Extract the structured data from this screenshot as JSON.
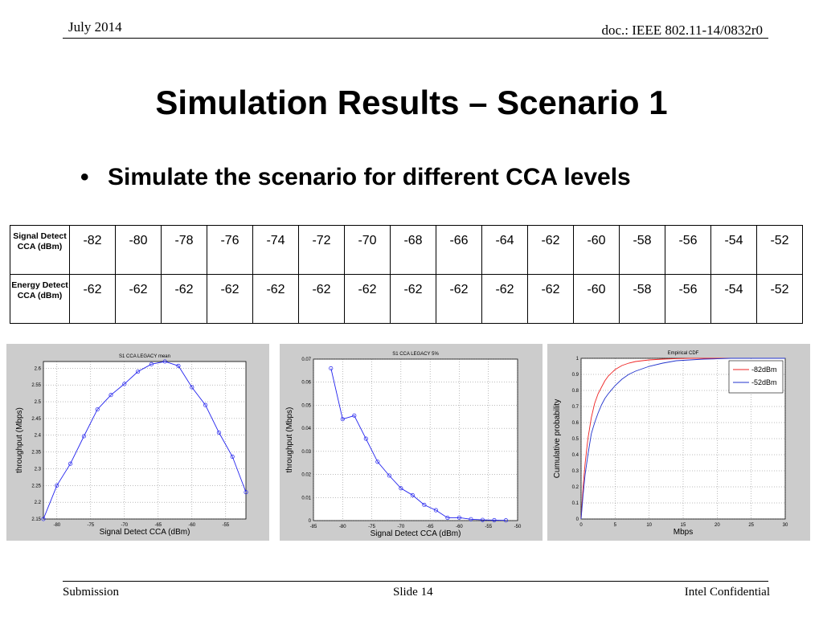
{
  "header": {
    "date": "July 2014",
    "doc": "doc.: IEEE 802.11-14/0832r0"
  },
  "title": "Simulation Results – Scenario 1",
  "bullet": {
    "marker": "•",
    "text": "Simulate the scenario for different CCA levels"
  },
  "table": {
    "rows": [
      {
        "header": "Signal Detect CCA (dBm)",
        "values": [
          "-82",
          "-80",
          "-78",
          "-76",
          "-74",
          "-72",
          "-70",
          "-68",
          "-66",
          "-64",
          "-62",
          "-60",
          "-58",
          "-56",
          "-54",
          "-52"
        ]
      },
      {
        "header": "Energy Detect CCA (dBm)",
        "values": [
          "-62",
          "-62",
          "-62",
          "-62",
          "-62",
          "-62",
          "-62",
          "-62",
          "-62",
          "-62",
          "-62",
          "-60",
          "-58",
          "-56",
          "-54",
          "-52"
        ]
      }
    ]
  },
  "chart_data": [
    {
      "type": "line",
      "title": "S1 CCA LEGACY mean",
      "xlabel": "Signal Detect CCA (dBm)",
      "ylabel": "throughput (Mbps)",
      "xlim": [
        -82,
        -52
      ],
      "ylim": [
        2.15,
        2.62
      ],
      "xticks": [
        -80,
        -75,
        -70,
        -65,
        -60,
        -55
      ],
      "yticks": [
        2.15,
        2.2,
        2.25,
        2.3,
        2.35,
        2.4,
        2.45,
        2.5,
        2.55,
        2.6
      ],
      "grid": true,
      "series": [
        {
          "x": [
            -82,
            -80,
            -78,
            -76,
            -74,
            -72,
            -70,
            -68,
            -66,
            -64,
            -62,
            -60,
            -58,
            -56,
            -54,
            -52
          ],
          "y": [
            2.15,
            2.25,
            2.315,
            2.397,
            2.477,
            2.52,
            2.553,
            2.59,
            2.612,
            2.62,
            2.607,
            2.543,
            2.49,
            2.408,
            2.336,
            2.23
          ],
          "color": "#2222ee",
          "marker": "circle"
        }
      ]
    },
    {
      "type": "line",
      "title": "S1 CCA LEGACY 5%",
      "xlabel": "Signal Detect CCA (dBm)",
      "ylabel": "throughput (Mbps)",
      "xlim": [
        -85,
        -50
      ],
      "ylim": [
        0,
        0.07
      ],
      "xticks": [
        -85,
        -80,
        -75,
        -70,
        -65,
        -60,
        -55,
        -50
      ],
      "yticks": [
        0,
        0.01,
        0.02,
        0.03,
        0.04,
        0.05,
        0.06,
        0.07
      ],
      "grid": true,
      "series": [
        {
          "x": [
            -82,
            -80,
            -78,
            -76,
            -74,
            -72,
            -70,
            -68,
            -66,
            -64,
            -62,
            -60,
            -58,
            -56,
            -54,
            -52
          ],
          "y": [
            0.066,
            0.044,
            0.0455,
            0.0355,
            0.0255,
            0.0195,
            0.014,
            0.011,
            0.0068,
            0.0045,
            0.0012,
            0.0013,
            0.0006,
            0.0003,
            0.0002,
            0.0001
          ],
          "color": "#2222ee",
          "marker": "circle"
        }
      ]
    },
    {
      "type": "line",
      "title": "Empirical CDF",
      "xlabel": "Mbps",
      "ylabel": "Cumulative probability",
      "xlim": [
        0,
        30
      ],
      "ylim": [
        0,
        1
      ],
      "xticks": [
        0,
        5,
        10,
        15,
        20,
        25,
        30
      ],
      "yticks": [
        0,
        0.1,
        0.2,
        0.3,
        0.4,
        0.5,
        0.6,
        0.7,
        0.8,
        0.9,
        1
      ],
      "grid": true,
      "legend": "top-right",
      "series": [
        {
          "name": "-82dBm",
          "color": "#ee2222",
          "x": [
            0,
            0.3,
            0.6,
            1,
            1.5,
            2,
            2.5,
            3,
            3.5,
            4,
            5,
            6,
            7,
            8,
            10,
            12,
            14,
            16,
            18,
            20,
            25,
            30
          ],
          "y": [
            0,
            0.2,
            0.35,
            0.5,
            0.63,
            0.72,
            0.78,
            0.82,
            0.86,
            0.89,
            0.93,
            0.955,
            0.97,
            0.98,
            0.99,
            0.995,
            0.998,
            1,
            1,
            1,
            1,
            1
          ]
        },
        {
          "name": "-52dBm",
          "color": "#2233cc",
          "x": [
            0,
            0.3,
            0.6,
            1,
            1.5,
            2,
            2.5,
            3,
            3.5,
            4,
            5,
            6,
            7,
            8,
            10,
            12,
            14,
            16,
            18,
            20,
            22,
            25,
            30
          ],
          "y": [
            0,
            0.15,
            0.28,
            0.4,
            0.53,
            0.6,
            0.66,
            0.71,
            0.75,
            0.78,
            0.83,
            0.87,
            0.9,
            0.92,
            0.95,
            0.97,
            0.985,
            0.99,
            0.995,
            0.997,
            1,
            1,
            1
          ]
        }
      ]
    }
  ],
  "footer": {
    "left": "Submission",
    "center": "Slide 14",
    "right": "Intel Confidential"
  }
}
